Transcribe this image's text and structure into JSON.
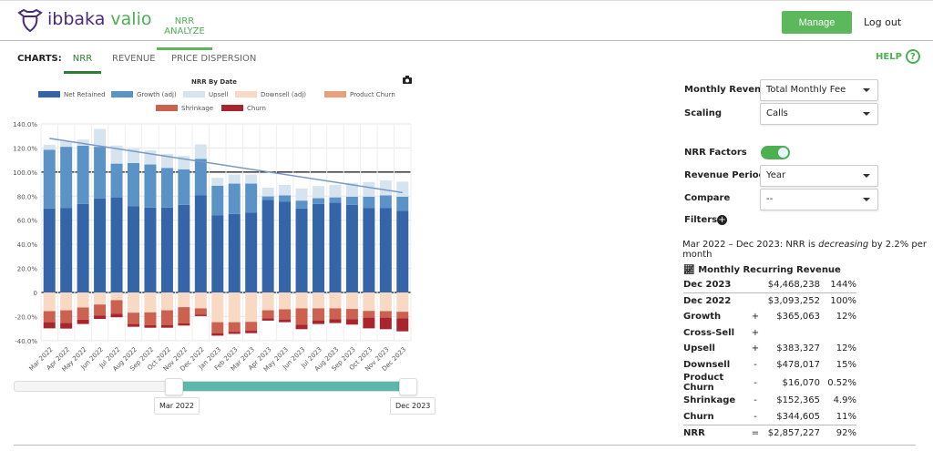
{
  "header": {
    "brand_a": "ibbaka",
    "brand_b": "valio",
    "nav_tab": "NRR ANALYZE",
    "manage": "Manage",
    "logout": "Log out"
  },
  "charts_bar": {
    "label": "CHARTS:",
    "tabs": [
      "NRR",
      "REVENUE",
      "PRICE DISPERSION"
    ],
    "active": "NRR",
    "help": "HELP",
    "help_icon": "?"
  },
  "controls": {
    "monthly_revenue": {
      "label": "Monthly Revenue",
      "value": "Total Monthly Fee"
    },
    "scaling": {
      "label": "Scaling",
      "value": "Calls"
    },
    "nrr_factors": {
      "label": "NRR Factors",
      "on": true
    },
    "revenue_period": {
      "label": "Revenue Period",
      "value": "Year"
    },
    "compare": {
      "label": "Compare",
      "value": "--"
    },
    "filters": {
      "label": "Filters"
    }
  },
  "summary": {
    "prefix": "Mar 2022 – Dec 2023: NRR is ",
    "trend": "decreasing",
    "suffix": " by 2.2% per month"
  },
  "mrr_table": {
    "title": "Monthly Recurring Revenue",
    "rows": [
      {
        "label": "Dec 2023",
        "sign": "",
        "value": "$4,468,238",
        "pct": "144%"
      },
      {
        "label": "Dec 2022",
        "sign": "",
        "value": "$3,093,252",
        "pct": "100%"
      },
      {
        "label": "Growth",
        "sign": "+",
        "value": "$365,063",
        "pct": "12%"
      },
      {
        "label": "Cross-Sell",
        "sign": "+",
        "value": "",
        "pct": ""
      },
      {
        "label": "Upsell",
        "sign": "+",
        "value": "$383,327",
        "pct": "12%"
      },
      {
        "label": "Downsell",
        "sign": "-",
        "value": "$478,017",
        "pct": "15%"
      },
      {
        "label": "Product Churn",
        "sign": "-",
        "value": "$16,070",
        "pct": "0.52%"
      },
      {
        "label": "Shrinkage",
        "sign": "-",
        "value": "$152,365",
        "pct": "4.9%"
      },
      {
        "label": "Churn",
        "sign": "-",
        "value": "$344,605",
        "pct": "11%"
      },
      {
        "label": "NRR",
        "sign": "=",
        "value": "$2,857,227",
        "pct": "92%"
      }
    ]
  },
  "slider": {
    "start": "Mar 2022",
    "end": "Dec 2023"
  },
  "chart_data": {
    "type": "bar",
    "stacked": true,
    "title": "NRR By Date",
    "ylim": [
      -40,
      140
    ],
    "yticks": [
      "140.0%",
      "120.0%",
      "100.0%",
      "80.0%",
      "60.0%",
      "40.0%",
      "20.0%",
      "0",
      "-20.0%",
      "-40.0%"
    ],
    "ytick_values": [
      140,
      120,
      100,
      80,
      60,
      40,
      20,
      0,
      -20,
      -40
    ],
    "grid": true,
    "legend": "top",
    "reference_line": 100,
    "categories": [
      "Mar 2022",
      "Apr 2022",
      "May 2022",
      "Jun 2022",
      "Jul 2022",
      "Aug 2022",
      "Sep 2022",
      "Oct 2022",
      "Nov 2022",
      "Dec 2022",
      "Jan 2023",
      "Feb 2023",
      "Mar 2023",
      "Apr 2023",
      "May 2023",
      "Jun 2023",
      "Jul 2023",
      "Aug 2023",
      "Sep 2023",
      "Oct 2023",
      "Nov 2023",
      "Dec 2023"
    ],
    "series": [
      {
        "name": "Net Retained",
        "color": "#3465a8",
        "values": [
          69.8,
          70,
          73.5,
          78,
          79,
          71.5,
          70.5,
          70.5,
          72.8,
          80.6,
          64.2,
          65.2,
          66.2,
          77,
          75.3,
          69.8,
          73.5,
          74.5,
          72.8,
          70,
          70,
          67.8
        ]
      },
      {
        "name": "Growth (adj)",
        "color": "#5b93c7",
        "values": [
          48.8,
          51,
          48.5,
          43,
          28,
          36,
          35.8,
          33,
          29.5,
          30.4,
          24.5,
          25.2,
          24.2,
          2.8,
          5.3,
          6.5,
          4.8,
          4.5,
          6.8,
          9.6,
          10.6,
          11.8
        ]
      },
      {
        "name": "Upsell",
        "color": "#d6e4f0",
        "values": [
          4.1,
          4.4,
          5,
          14.8,
          15,
          11.9,
          11.7,
          11.5,
          11.1,
          12,
          6.5,
          7.6,
          7.6,
          7.2,
          8.8,
          10.1,
          10.1,
          10.4,
          11.4,
          12.1,
          12.4,
          12.4
        ]
      },
      {
        "name": "Downsell (adj)",
        "color": "#f8d9c4",
        "values": [
          -15.5,
          -14.8,
          -12.5,
          -10,
          -6.4,
          -16.8,
          -16.5,
          -14.8,
          -12.2,
          -13.2,
          -24.7,
          -24.7,
          -24.4,
          -14.8,
          -14,
          -13.2,
          -13.2,
          -13.2,
          -13.7,
          -15.3,
          -15.5,
          -16
        ]
      },
      {
        "name": "Product Churn",
        "color": "#e8a07e",
        "values": [
          0,
          0,
          0,
          0,
          0,
          0,
          0,
          0,
          0,
          0,
          0,
          0,
          0,
          0,
          0,
          0,
          0,
          0,
          0,
          0,
          0,
          0
        ]
      },
      {
        "name": "Shrinkage",
        "color": "#cd6150",
        "values": [
          -9.2,
          -10.6,
          -10.1,
          -9.1,
          -11.4,
          -9.4,
          -10.7,
          -12.2,
          -13.5,
          -5.1,
          -9.1,
          -7.9,
          -7.4,
          -6.8,
          -8.4,
          -13.5,
          -10,
          -8.9,
          -8.4,
          -5.6,
          -5.4,
          -5.4
        ]
      },
      {
        "name": "Churn",
        "color": "#a8252d",
        "values": [
          -5.1,
          -4.6,
          -3.6,
          -2.9,
          -2.8,
          -2.3,
          -2.1,
          -2.3,
          -1.8,
          -1.3,
          -2.1,
          -1.8,
          -2,
          -1.8,
          -2.3,
          -3.8,
          -3,
          -3.3,
          -4.6,
          -8.9,
          -9.6,
          -10.9
        ]
      }
    ],
    "trend_line": {
      "start": 128,
      "end": 83
    }
  }
}
